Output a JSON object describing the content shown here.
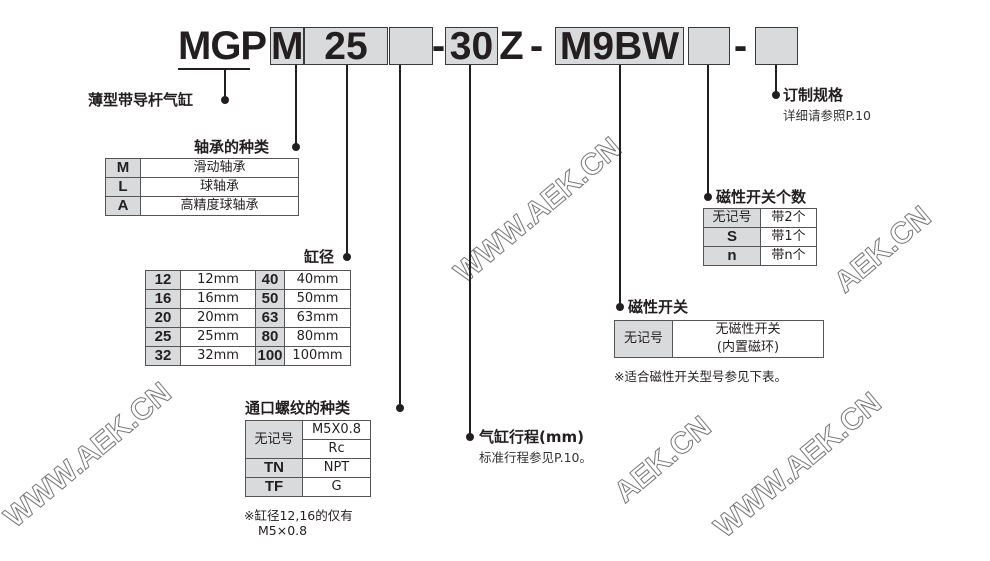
{
  "model_code": {
    "series": "MGP",
    "bearing": "M",
    "bore": "25",
    "port": "",
    "dash1": "-",
    "stroke": "30",
    "z": "Z",
    "dash2": "-",
    "switch": "M9BW",
    "switch_count": "",
    "dash3": "-",
    "option": ""
  },
  "series_label": "薄型带导杆气缸",
  "bearing": {
    "title": "轴承的种类",
    "rows": [
      {
        "code": "M",
        "desc": "滑动轴承"
      },
      {
        "code": "L",
        "desc": "球轴承"
      },
      {
        "code": "A",
        "desc": "高精度球轴承"
      }
    ]
  },
  "bore": {
    "title": "缸径",
    "rows": [
      {
        "c1": "12",
        "v1": "12mm",
        "c2": "40",
        "v2": "40mm"
      },
      {
        "c1": "16",
        "v1": "16mm",
        "c2": "50",
        "v2": "50mm"
      },
      {
        "c1": "20",
        "v1": "20mm",
        "c2": "63",
        "v2": "63mm"
      },
      {
        "c1": "25",
        "v1": "25mm",
        "c2": "80",
        "v2": "80mm"
      },
      {
        "c1": "32",
        "v1": "32mm",
        "c2": "100",
        "v2": "100mm"
      }
    ]
  },
  "port": {
    "title": "通口螺纹的种类",
    "nil_code": "无记号",
    "nil_values": [
      "M5X0.8",
      "Rc"
    ],
    "rows": [
      {
        "code": "TN",
        "desc": "NPT"
      },
      {
        "code": "TF",
        "desc": "G"
      }
    ],
    "note1": "※缸径12,16的仅有",
    "note2": "M5×0.8"
  },
  "stroke": {
    "title": "气缸行程(mm)",
    "note": "标准行程参见P.10。"
  },
  "switch": {
    "title": "磁性开关",
    "code": "无记号",
    "desc1": "无磁性开关",
    "desc2": "(内置磁环)",
    "note": "※适合磁性开关型号参见下表。"
  },
  "switch_count": {
    "title": "磁性开关个数",
    "rows": [
      {
        "code": "无记号",
        "desc": "带2个"
      },
      {
        "code": "S",
        "desc": "带1个"
      },
      {
        "code": "n",
        "desc": "带n个"
      }
    ]
  },
  "option": {
    "title": "订制规格",
    "note": "详细请参照P.10"
  },
  "watermarks": [
    "AEK.CN",
    "WWW.AEK.CN",
    "WWW.AEK.CN",
    "WWW.AEK.CN",
    "AEK.CN"
  ]
}
